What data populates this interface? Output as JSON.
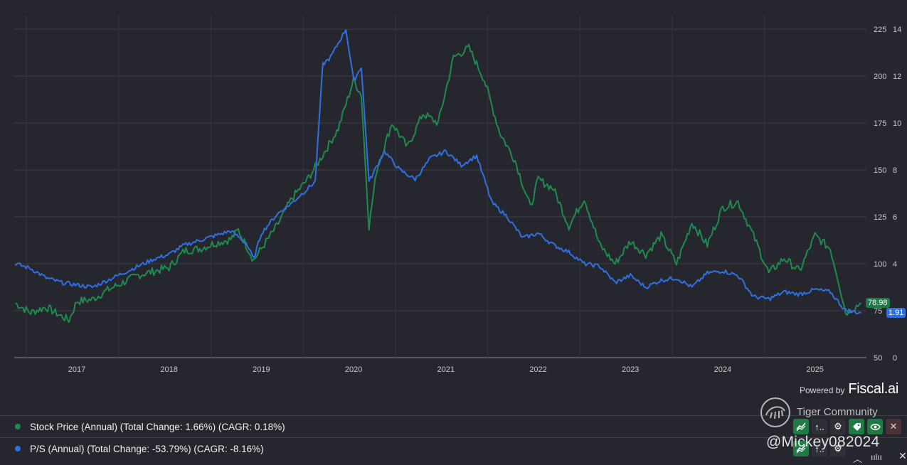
{
  "chart_data": {
    "type": "line",
    "x_ticks": [
      "2017",
      "2018",
      "2019",
      "2020",
      "2021",
      "2022",
      "2023",
      "2024",
      "2025"
    ],
    "left_axis": {
      "label": "Stock Price",
      "ticks": [
        50,
        75,
        100,
        125,
        150,
        175,
        200,
        225
      ],
      "range": [
        50,
        230
      ]
    },
    "right_axis": {
      "label": "P/S",
      "ticks": [
        0,
        2,
        4,
        6,
        8,
        10,
        12,
        14
      ],
      "range": [
        0,
        14.4
      ]
    },
    "grid": true,
    "series": [
      {
        "name": "Stock Price (Annual)",
        "axis": "left",
        "color": "#1f8a4c",
        "last_value": "78.98",
        "points": [
          [
            "2016-05",
            79
          ],
          [
            "2016-07",
            74
          ],
          [
            "2016-09",
            77
          ],
          [
            "2016-11",
            72
          ],
          [
            "2016-12",
            70
          ],
          [
            "2017-01",
            80
          ],
          [
            "2017-03",
            81
          ],
          [
            "2017-05",
            86
          ],
          [
            "2017-07",
            90
          ],
          [
            "2017-09",
            94
          ],
          [
            "2017-11",
            96
          ],
          [
            "2018-01",
            98
          ],
          [
            "2018-03",
            107
          ],
          [
            "2018-05",
            108
          ],
          [
            "2018-07",
            111
          ],
          [
            "2018-09",
            113
          ],
          [
            "2018-10",
            118
          ],
          [
            "2018-12",
            102
          ],
          [
            "2019-01",
            108
          ],
          [
            "2019-03",
            120
          ],
          [
            "2019-05",
            135
          ],
          [
            "2019-07",
            145
          ],
          [
            "2019-09",
            158
          ],
          [
            "2019-11",
            172
          ],
          [
            "2020-01",
            198
          ],
          [
            "2020-02",
            190
          ],
          [
            "2020-03",
            120
          ],
          [
            "2020-04",
            150
          ],
          [
            "2020-06",
            175
          ],
          [
            "2020-08",
            162
          ],
          [
            "2020-10",
            180
          ],
          [
            "2020-12",
            175
          ],
          [
            "2021-02",
            210
          ],
          [
            "2021-04",
            215
          ],
          [
            "2021-06",
            198
          ],
          [
            "2021-08",
            170
          ],
          [
            "2021-10",
            155
          ],
          [
            "2021-12",
            130
          ],
          [
            "2022-01",
            145
          ],
          [
            "2022-03",
            140
          ],
          [
            "2022-05",
            120
          ],
          [
            "2022-07",
            135
          ],
          [
            "2022-09",
            110
          ],
          [
            "2022-11",
            100
          ],
          [
            "2023-01",
            112
          ],
          [
            "2023-03",
            105
          ],
          [
            "2023-05",
            115
          ],
          [
            "2023-07",
            100
          ],
          [
            "2023-09",
            122
          ],
          [
            "2023-11",
            110
          ],
          [
            "2024-01",
            130
          ],
          [
            "2024-03",
            133
          ],
          [
            "2024-05",
            115
          ],
          [
            "2024-07",
            95
          ],
          [
            "2024-09",
            103
          ],
          [
            "2024-11",
            96
          ],
          [
            "2025-01",
            115
          ],
          [
            "2025-03",
            108
          ],
          [
            "2025-04",
            92
          ],
          [
            "2025-05",
            74
          ],
          [
            "2025-07",
            79
          ]
        ]
      },
      {
        "name": "P/S (Annual)",
        "axis": "right",
        "color": "#2f6fe0",
        "last_value": "1.91",
        "points": [
          [
            "2016-05",
            4.0
          ],
          [
            "2016-07",
            3.8
          ],
          [
            "2016-09",
            3.4
          ],
          [
            "2016-11",
            3.2
          ],
          [
            "2017-01",
            3.1
          ],
          [
            "2017-03",
            3.0
          ],
          [
            "2017-05",
            3.3
          ],
          [
            "2017-07",
            3.6
          ],
          [
            "2017-09",
            3.9
          ],
          [
            "2017-11",
            4.2
          ],
          [
            "2018-01",
            4.4
          ],
          [
            "2018-03",
            4.8
          ],
          [
            "2018-05",
            5.0
          ],
          [
            "2018-07",
            5.2
          ],
          [
            "2018-09",
            5.4
          ],
          [
            "2018-11",
            4.9
          ],
          [
            "2018-12",
            4.2
          ],
          [
            "2019-01",
            5.3
          ],
          [
            "2019-03",
            6.1
          ],
          [
            "2019-05",
            6.6
          ],
          [
            "2019-07",
            7.2
          ],
          [
            "2019-08",
            7.5
          ],
          [
            "2019-09",
            12.5
          ],
          [
            "2019-10",
            12.8
          ],
          [
            "2019-12",
            14.0
          ],
          [
            "2020-01",
            11.8
          ],
          [
            "2020-02",
            12.4
          ],
          [
            "2020-03",
            7.5
          ],
          [
            "2020-05",
            8.8
          ],
          [
            "2020-07",
            8.0
          ],
          [
            "2020-09",
            7.6
          ],
          [
            "2020-11",
            8.5
          ],
          [
            "2021-01",
            8.8
          ],
          [
            "2021-03",
            8.2
          ],
          [
            "2021-05",
            8.6
          ],
          [
            "2021-07",
            6.6
          ],
          [
            "2021-09",
            6.0
          ],
          [
            "2021-11",
            5.1
          ],
          [
            "2022-01",
            5.3
          ],
          [
            "2022-03",
            4.8
          ],
          [
            "2022-05",
            4.5
          ],
          [
            "2022-07",
            4.0
          ],
          [
            "2022-09",
            3.9
          ],
          [
            "2022-11",
            3.2
          ],
          [
            "2023-01",
            3.5
          ],
          [
            "2023-03",
            3.0
          ],
          [
            "2023-05",
            3.3
          ],
          [
            "2023-07",
            3.4
          ],
          [
            "2023-09",
            3.0
          ],
          [
            "2023-11",
            3.6
          ],
          [
            "2024-01",
            3.7
          ],
          [
            "2024-03",
            3.5
          ],
          [
            "2024-05",
            2.6
          ],
          [
            "2024-07",
            2.5
          ],
          [
            "2024-09",
            2.8
          ],
          [
            "2024-11",
            2.7
          ],
          [
            "2025-01",
            2.9
          ],
          [
            "2025-03",
            2.8
          ],
          [
            "2025-05",
            2.0
          ],
          [
            "2025-07",
            1.91
          ]
        ]
      }
    ]
  },
  "branding": {
    "powered_by": "Powered by",
    "brand": "Fiscal.ai"
  },
  "legend": [
    {
      "label": "Stock Price (Annual) (Total Change: 1.66%) (CAGR: 0.18%)",
      "color": "#1f8a4c"
    },
    {
      "label": "P/S (Annual) (Total Change: -53.79%) (CAGR: -8.16%)",
      "color": "#2f6fe0"
    }
  ],
  "watermark": {
    "community": "Tiger Community",
    "handle": "@Mickey082024"
  },
  "toolbar": {
    "expand_label": "↑..",
    "expand_label_2": "↑.."
  }
}
